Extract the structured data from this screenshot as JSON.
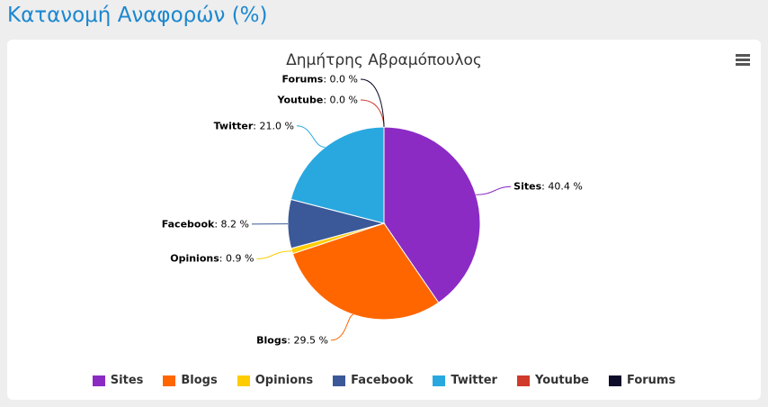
{
  "header": {
    "title": "Κατανομή Αναφορών (%)"
  },
  "chart_data": {
    "type": "pie",
    "title": "Δημήτρης Αβραμόπουλος",
    "categories": [
      "Sites",
      "Blogs",
      "Opinions",
      "Facebook",
      "Twitter",
      "Youtube",
      "Forums"
    ],
    "values": [
      40.4,
      29.5,
      0.9,
      8.2,
      21.0,
      0.0,
      0.0
    ],
    "value_labels": [
      "40.4 %",
      "29.5 %",
      "0.9 %",
      "8.2 %",
      "21.0 %",
      "0.0 %",
      "0.0 %"
    ],
    "colors": [
      "#8b2bc4",
      "#ff6600",
      "#ffcc00",
      "#3b5998",
      "#29a8e0",
      "#d03a2a",
      "#0d0d2a"
    ],
    "legend": "bottom"
  }
}
